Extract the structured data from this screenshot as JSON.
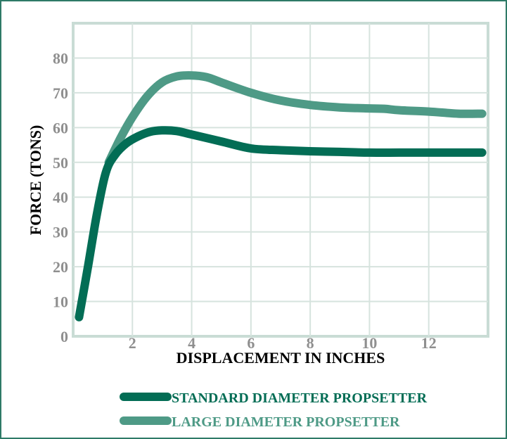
{
  "chart_data": {
    "type": "line",
    "xlabel": "DISPLACEMENT IN INCHES",
    "ylabel": "FORCE (TONS)",
    "xlim": [
      0,
      14
    ],
    "ylim": [
      0,
      90
    ],
    "x_ticks": [
      2,
      4,
      6,
      8,
      10,
      12
    ],
    "y_ticks": [
      0,
      10,
      20,
      30,
      40,
      50,
      60,
      70,
      80
    ],
    "grid": true,
    "legend_position": "bottom",
    "series": [
      {
        "name": "STANDARD DIAMETER PROPSETTER",
        "color": "#036d55",
        "x": [
          0.2,
          0.5,
          0.8,
          1.1,
          1.4,
          1.8,
          2.2,
          2.6,
          3.0,
          3.5,
          4.0,
          5.0,
          6.0,
          7.0,
          8.0,
          9.0,
          10.0,
          11.0,
          12.0,
          13.0,
          13.8
        ],
        "y": [
          5.5,
          20,
          35,
          47,
          52,
          55.5,
          57.5,
          58.8,
          59.2,
          59,
          58,
          56,
          54,
          53.5,
          53.2,
          53,
          52.8,
          52.8,
          52.8,
          52.8,
          52.8
        ]
      },
      {
        "name": "LARGE DIAMETER PROPSETTER",
        "color": "#4e9a86",
        "x": [
          1.2,
          1.6,
          2.0,
          2.5,
          3.0,
          3.5,
          4.0,
          4.5,
          5.0,
          6.0,
          7.0,
          8.0,
          9.0,
          10.0,
          10.5,
          11.0,
          12.0,
          13.0,
          13.8
        ],
        "y": [
          50,
          57,
          63,
          69,
          73,
          74.7,
          75,
          74.5,
          73,
          70,
          67.8,
          66.5,
          65.8,
          65.5,
          65.4,
          65,
          64.6,
          64,
          64
        ]
      }
    ]
  }
}
